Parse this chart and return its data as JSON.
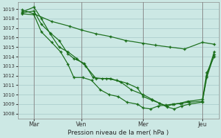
{
  "xlabel": "Pression niveau de la mer( hPa )",
  "background_color": "#cce8e4",
  "grid_color": "#aacccc",
  "line_color": "#1a6e1a",
  "marker": "+",
  "ylim": [
    1007.5,
    1019.7
  ],
  "yticks": [
    1008,
    1009,
    1010,
    1011,
    1012,
    1013,
    1014,
    1015,
    1016,
    1017,
    1018,
    1019
  ],
  "xlim": [
    -0.3,
    13.3
  ],
  "xtick_positions": [
    0.8,
    4.0,
    8.2,
    12.2
  ],
  "xtick_labels": [
    "Mar",
    "Ven",
    "Mer",
    "Jeu"
  ],
  "vline_positions": [
    0.8,
    4.0,
    8.2,
    12.2
  ],
  "series": [
    {
      "x": [
        0.0,
        0.8,
        2.0,
        3.2,
        4.0,
        5.0,
        6.0,
        7.0,
        8.2,
        9.0,
        10.0,
        11.0,
        12.2,
        13.0
      ],
      "y": [
        1018.9,
        1018.5,
        1017.7,
        1017.2,
        1016.8,
        1016.4,
        1016.1,
        1015.7,
        1015.4,
        1015.2,
        1015.0,
        1014.8,
        1015.5,
        1015.3
      ]
    },
    {
      "x": [
        0.0,
        0.8,
        1.3,
        1.9,
        2.5,
        3.1,
        3.7,
        4.3,
        5.0,
        5.7,
        6.4,
        7.1,
        7.8,
        8.2,
        8.8,
        9.3,
        9.8,
        10.3,
        10.8,
        11.3,
        12.2,
        12.5,
        13.0
      ],
      "y": [
        1018.7,
        1019.2,
        1018.0,
        1016.4,
        1015.0,
        1014.5,
        1013.8,
        1013.0,
        1011.7,
        1011.7,
        1011.5,
        1011.2,
        1010.7,
        1009.8,
        1009.4,
        1009.1,
        1008.8,
        1009.0,
        1009.1,
        1009.2,
        1009.3,
        1011.8,
        1014.2
      ]
    },
    {
      "x": [
        0.0,
        0.8,
        1.3,
        1.9,
        2.5,
        3.1,
        3.5,
        4.2,
        4.8,
        5.4,
        6.0,
        6.7,
        7.4,
        8.2,
        8.8,
        9.3,
        9.8,
        10.3,
        10.8,
        11.3,
        12.2,
        12.5,
        13.0
      ],
      "y": [
        1018.6,
        1018.8,
        1017.4,
        1016.5,
        1015.7,
        1014.3,
        1013.8,
        1013.3,
        1011.8,
        1011.7,
        1011.7,
        1011.3,
        1010.5,
        1010.0,
        1009.5,
        1009.1,
        1008.7,
        1008.5,
        1008.8,
        1009.0,
        1009.2,
        1012.0,
        1014.5
      ]
    },
    {
      "x": [
        0.0,
        0.8,
        1.3,
        2.0,
        2.6,
        3.1,
        3.5,
        4.1,
        4.7,
        5.3,
        5.9,
        6.5,
        7.1,
        7.8,
        8.2,
        8.7,
        9.2,
        9.7,
        10.2,
        10.7,
        11.2,
        12.2,
        12.5,
        13.0
      ],
      "y": [
        1018.5,
        1018.4,
        1016.6,
        1015.5,
        1014.5,
        1013.2,
        1011.8,
        1011.8,
        1011.5,
        1010.5,
        1010.0,
        1009.8,
        1009.2,
        1009.0,
        1008.6,
        1008.5,
        1008.8,
        1008.9,
        1009.0,
        1009.1,
        1009.3,
        1009.5,
        1012.3,
        1014.0
      ]
    }
  ]
}
